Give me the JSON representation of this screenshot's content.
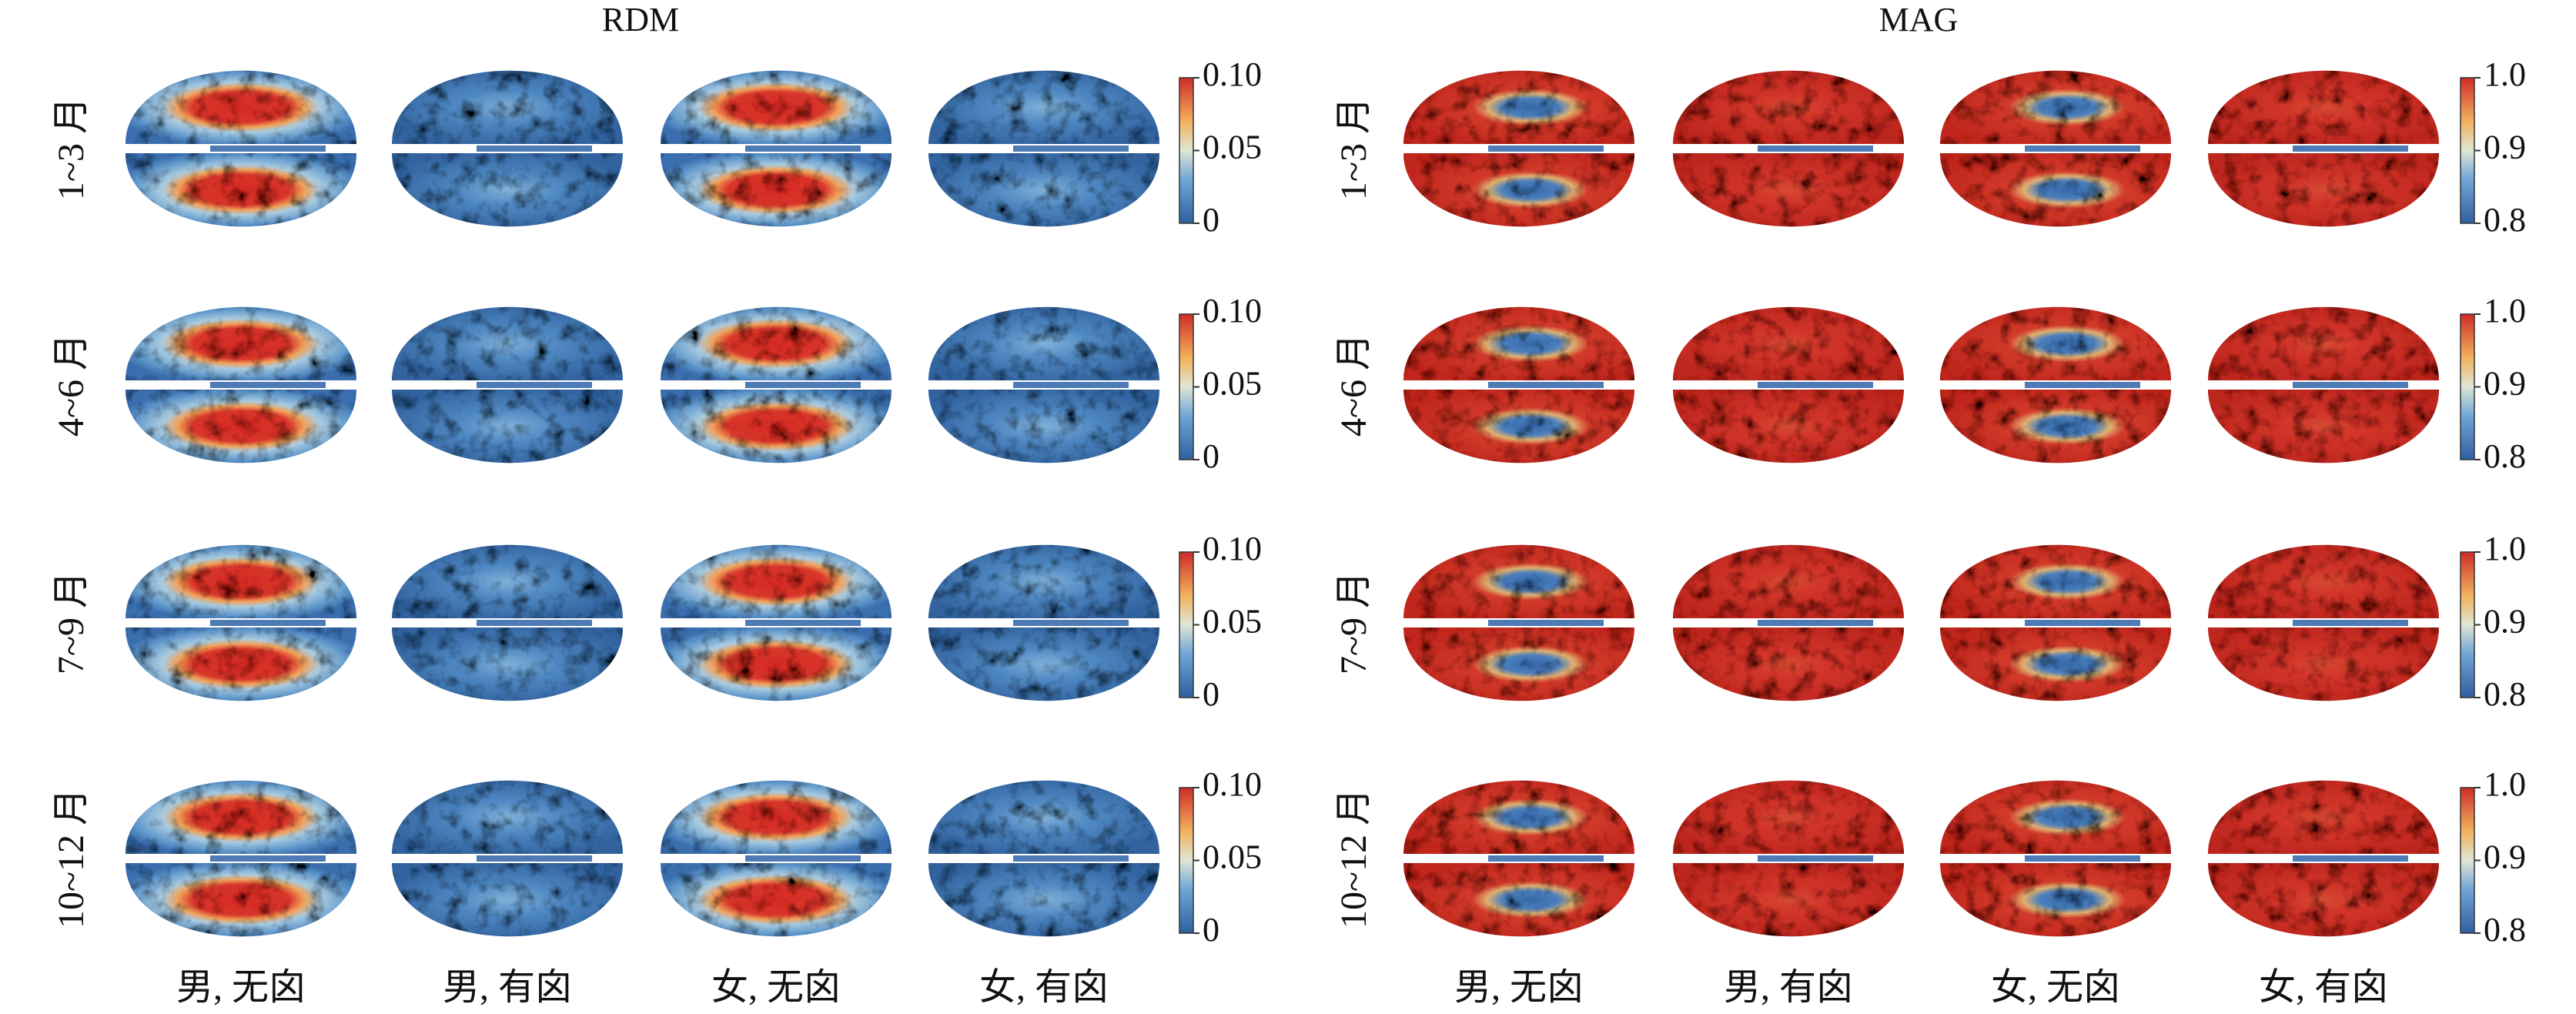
{
  "panels": [
    {
      "title": "RDM",
      "rows": [
        "1~3 月",
        "4~6 月",
        "7~9 月",
        "10~12 月"
      ],
      "columns": [
        "男, 无囟",
        "男, 有囟",
        "女, 无囟",
        "女, 有囟"
      ],
      "colorbar_ticks": [
        "0.10",
        "0.05",
        "0"
      ]
    },
    {
      "title": "MAG",
      "rows": [
        "1~3 月",
        "4~6 月",
        "7~9 月",
        "10~12 月"
      ],
      "columns": [
        "男, 无囟",
        "男, 有囟",
        "女, 无囟",
        "女, 有囟"
      ],
      "colorbar_ticks": [
        "1.0",
        "0.9",
        "0.8"
      ]
    }
  ]
}
